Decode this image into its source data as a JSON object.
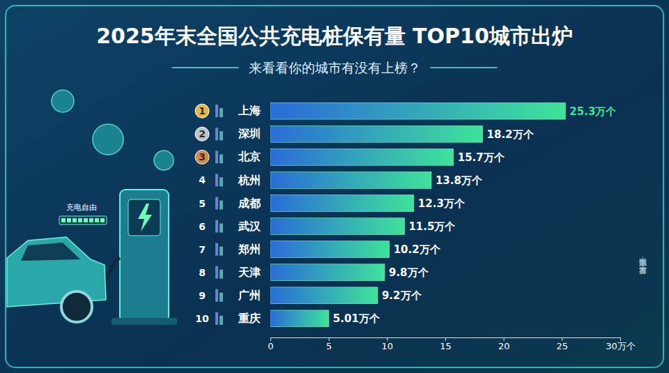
{
  "chart_data": {
    "type": "bar",
    "orientation": "horizontal",
    "title": "2025年末全国公共充电桩保有量 TOP10城市出炉",
    "subtitle": "来看看你的城市有没有上榜？",
    "categories": [
      "上海",
      "深圳",
      "北京",
      "杭州",
      "成都",
      "武汉",
      "郑州",
      "天津",
      "广州",
      "重庆"
    ],
    "ranks": [
      1,
      2,
      3,
      4,
      5,
      6,
      7,
      8,
      9,
      10
    ],
    "values": [
      25.3,
      18.2,
      15.7,
      13.8,
      12.3,
      11.5,
      10.2,
      9.8,
      9.2,
      5.01
    ],
    "value_labels": [
      "25.3万个",
      "18.2万个",
      "15.7万个",
      "13.8万个",
      "12.3万个",
      "11.5万个",
      "10.2万个",
      "9.8万个",
      "9.2万个",
      "5.01万个"
    ],
    "data_labels": true,
    "color": "#3ee39a",
    "xlim": [
      0,
      30
    ],
    "xticks": [
      0,
      5,
      10,
      15,
      20,
      25,
      {
        "value": 30,
        "label": "30万个"
      }
    ],
    "grid": false,
    "annotations": [
      "充电自由"
    ],
    "source": "数据来源：官方发布"
  }
}
